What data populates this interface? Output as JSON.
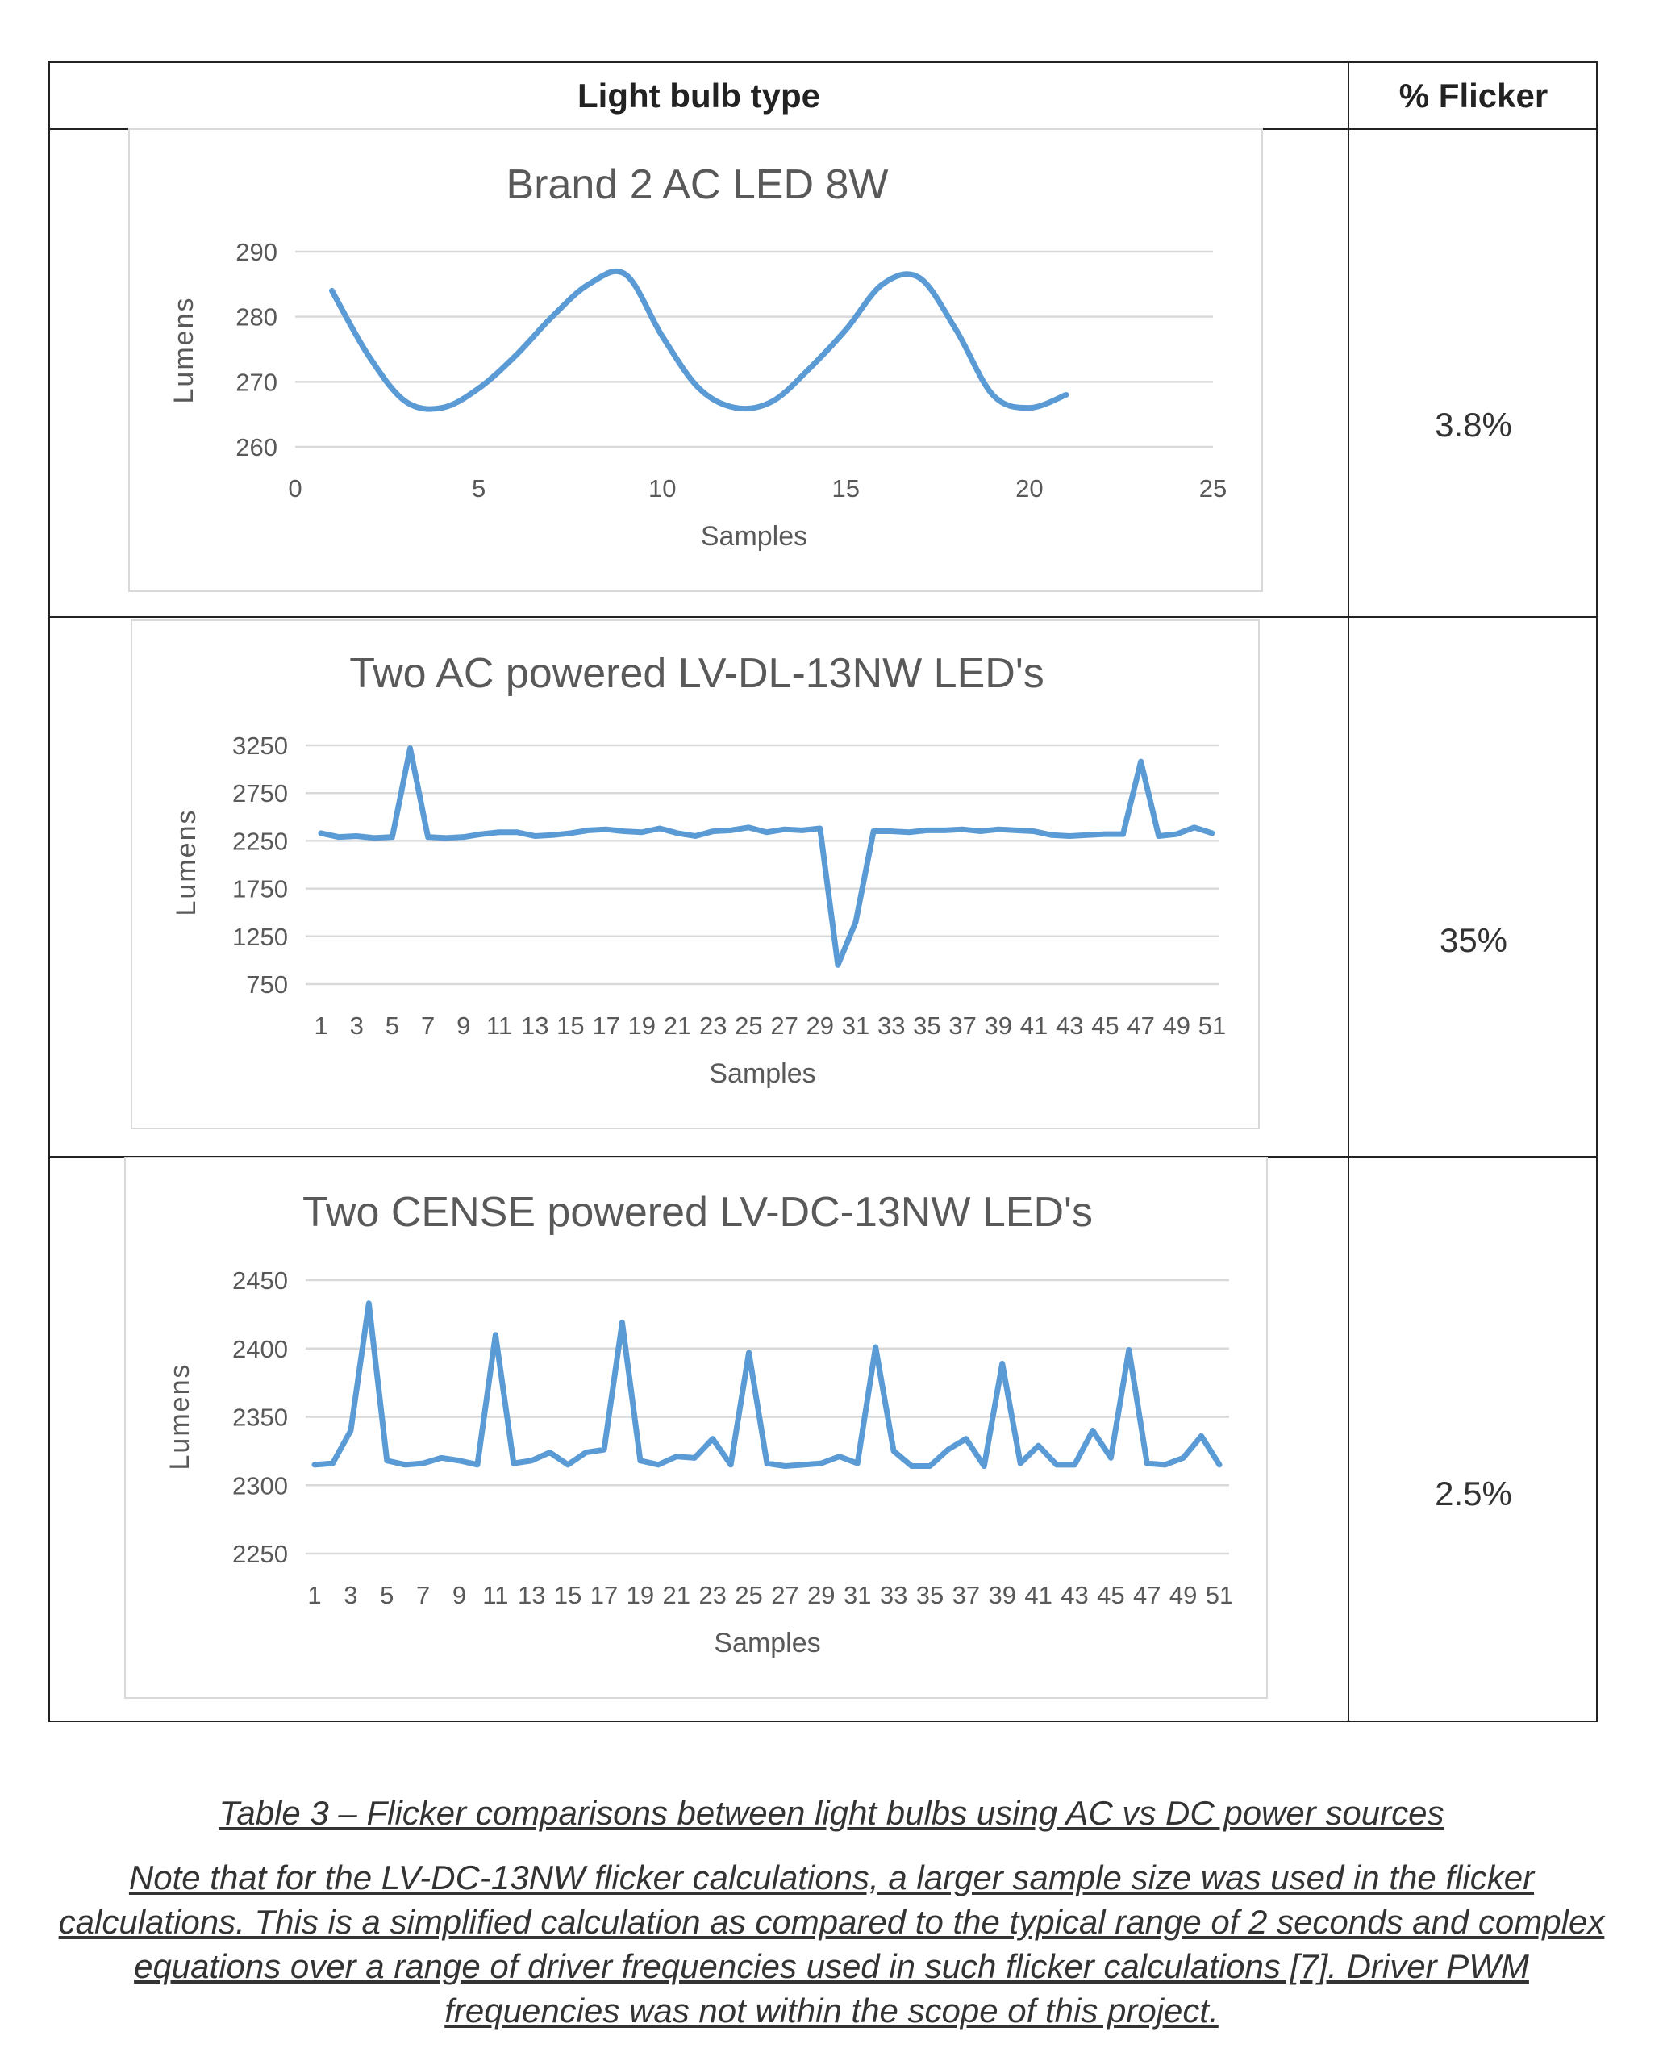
{
  "table": {
    "headers": [
      "Light bulb type",
      "% Flicker"
    ],
    "rows": [
      {
        "flicker": "3.8%"
      },
      {
        "flicker": "35%"
      },
      {
        "flicker": "2.5%"
      }
    ]
  },
  "caption": "Table 3 – Flicker comparisons between light bulbs using AC vs DC power sources",
  "note": "Note that for the LV-DC-13NW flicker calculations, a larger sample size was used in the flicker calculations. This is a simplified calculation as compared to the typical range of 2 seconds and complex equations over a range of driver frequencies used in such flicker calculations [7]. Driver PWM frequencies was not within the scope of this project.",
  "chart_data": [
    {
      "type": "line",
      "title": "Brand 2 AC LED 8W",
      "xlabel": "Samples",
      "ylabel": "Lumens",
      "smooth": true,
      "xlim": [
        0,
        25
      ],
      "ylim": [
        260,
        290
      ],
      "xticks": [
        "0",
        "5",
        "10",
        "15",
        "20",
        "25"
      ],
      "yticks": [
        "260",
        "270",
        "280",
        "290"
      ],
      "grid": true,
      "color": "#5B9BD5",
      "x": [
        1,
        2,
        3,
        4,
        5,
        6,
        7,
        8,
        9,
        10,
        11,
        12,
        13,
        14,
        15,
        16,
        17,
        18,
        19,
        20,
        21
      ],
      "values": [
        284,
        274,
        267,
        266,
        269,
        274,
        280,
        285,
        286.5,
        277,
        269,
        266,
        267,
        272,
        278,
        285,
        286,
        278,
        268,
        266,
        268
      ]
    },
    {
      "type": "line",
      "title": "Two AC powered LV-DL-13NW LED's",
      "xlabel": "Samples",
      "ylabel": "Lumens",
      "ylim": [
        750,
        3250
      ],
      "yticks": [
        "750",
        "1250",
        "1750",
        "2250",
        "2750",
        "3250"
      ],
      "xtick_labels": [
        "1",
        "3",
        "5",
        "7",
        "9",
        "11",
        "13",
        "15",
        "17",
        "19",
        "21",
        "23",
        "25",
        "27",
        "29",
        "31",
        "33",
        "35",
        "37",
        "39",
        "41",
        "43",
        "45",
        "47",
        "49",
        "51"
      ],
      "grid": true,
      "color": "#5B9BD5",
      "values": [
        2330,
        2290,
        2300,
        2280,
        2290,
        3220,
        2290,
        2280,
        2290,
        2320,
        2340,
        2340,
        2300,
        2310,
        2330,
        2360,
        2370,
        2350,
        2340,
        2380,
        2330,
        2300,
        2350,
        2360,
        2390,
        2340,
        2370,
        2360,
        2380,
        950,
        1400,
        2350,
        2350,
        2340,
        2360,
        2360,
        2370,
        2350,
        2370,
        2360,
        2350,
        2310,
        2300,
        2310,
        2320,
        2320,
        3080,
        2300,
        2320,
        2390,
        2330
      ]
    },
    {
      "type": "line",
      "title": "Two CENSE powered LV-DC-13NW LED's",
      "xlabel": "Samples",
      "ylabel": "Lumens",
      "ylim": [
        2250,
        2450
      ],
      "yticks": [
        "2250",
        "2300",
        "2350",
        "2400",
        "2450"
      ],
      "xtick_labels": [
        "1",
        "3",
        "5",
        "7",
        "9",
        "11",
        "13",
        "15",
        "17",
        "19",
        "21",
        "23",
        "25",
        "27",
        "29",
        "31",
        "33",
        "35",
        "37",
        "39",
        "41",
        "43",
        "45",
        "47",
        "49",
        "51"
      ],
      "grid": true,
      "color": "#5B9BD5",
      "values": [
        2315,
        2316,
        2340,
        2433,
        2318,
        2315,
        2316,
        2320,
        2318,
        2315,
        2410,
        2316,
        2318,
        2324,
        2315,
        2324,
        2326,
        2419,
        2318,
        2315,
        2321,
        2320,
        2334,
        2315,
        2397,
        2316,
        2314,
        2315,
        2316,
        2321,
        2316,
        2401,
        2325,
        2314,
        2314,
        2326,
        2334,
        2314,
        2389,
        2316,
        2329,
        2315,
        2315,
        2340,
        2320,
        2399,
        2316,
        2315,
        2320,
        2336,
        2315
      ]
    }
  ]
}
